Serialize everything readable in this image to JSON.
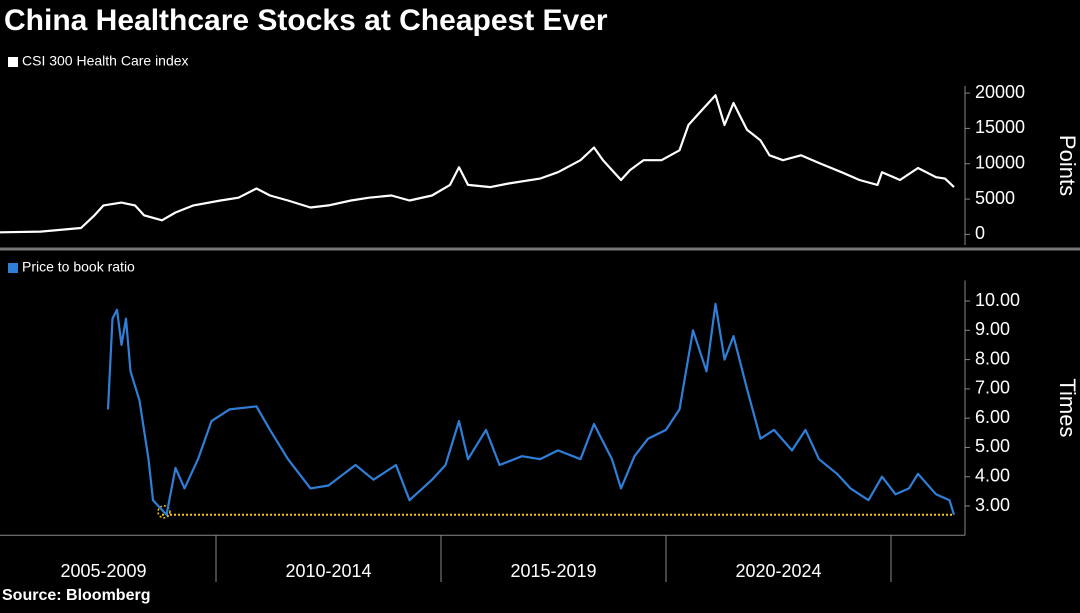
{
  "title": "China Healthcare Stocks at Cheapest Ever",
  "source": "Source: Bloomberg",
  "chart_data": [
    {
      "type": "line",
      "ylabel": "Points",
      "xlim": [
        2005.2,
        2026.6
      ],
      "ylim": [
        -1500,
        21000
      ],
      "yticks": [
        0,
        5000,
        10000,
        15000,
        20000
      ],
      "x": [
        2005.2,
        2006.1,
        2007.0,
        2007.3,
        2007.5,
        2007.9,
        2008.2,
        2008.4,
        2008.8,
        2009.1,
        2009.5,
        2010.1,
        2010.5,
        2010.9,
        2011.2,
        2011.6,
        2012.1,
        2012.5,
        2013.0,
        2013.4,
        2013.9,
        2014.3,
        2014.8,
        2015.2,
        2015.4,
        2015.6,
        2016.1,
        2016.5,
        2017.2,
        2017.6,
        2018.1,
        2018.4,
        2018.6,
        2019.0,
        2019.2,
        2019.5,
        2019.9,
        2020.3,
        2020.5,
        2020.8,
        2021.1,
        2021.3,
        2021.5,
        2021.8,
        2022.1,
        2022.3,
        2022.6,
        2023.0,
        2023.4,
        2023.9,
        2024.3,
        2024.7,
        2024.8,
        2025.2,
        2025.6,
        2026.0,
        2026.2,
        2026.4
      ],
      "series": [
        {
          "name": "CSI 300 Health Care index",
          "color": "#ffffff",
          "values": [
            300,
            400,
            900,
            2700,
            4100,
            4500,
            4100,
            2700,
            2000,
            3100,
            4100,
            4800,
            5200,
            6500,
            5500,
            4800,
            3800,
            4100,
            4800,
            5200,
            5500,
            4800,
            5500,
            7000,
            9500,
            7000,
            6700,
            7200,
            7900,
            8800,
            10500,
            12300,
            10500,
            7700,
            9100,
            10500,
            10500,
            11900,
            15500,
            17600,
            19700,
            15500,
            18600,
            14800,
            13300,
            11200,
            10500,
            11200,
            10100,
            8800,
            7700,
            7000,
            8800,
            7700,
            9400,
            8100,
            7900,
            6700
          ]
        }
      ]
    },
    {
      "type": "line",
      "ylabel": "Times",
      "xlim": [
        2005.2,
        2026.6
      ],
      "ylim": [
        2,
        10.7
      ],
      "yticks": [
        {
          "value": 3,
          "label": "3.00"
        },
        {
          "value": 4,
          "label": "4.00"
        },
        {
          "value": 5,
          "label": "5.00"
        },
        {
          "value": 6,
          "label": "6.00"
        },
        {
          "value": 7,
          "label": "7.00"
        },
        {
          "value": 8,
          "label": "8.00"
        },
        {
          "value": 9,
          "label": "9.00"
        },
        {
          "value": 10,
          "label": "10.00"
        }
      ],
      "xticks": [
        {
          "value": 2007.5,
          "label": "2005-2009"
        },
        {
          "value": 2012.5,
          "label": "2010-2014"
        },
        {
          "value": 2017.5,
          "label": "2015-2019"
        },
        {
          "value": 2022.5,
          "label": "2020-2024"
        }
      ],
      "x_separators": [
        2010,
        2015,
        2020,
        2025
      ],
      "reference_line": {
        "y": 2.7,
        "x": [
          2008.8,
          2026.4
        ],
        "color": "#f5c518"
      },
      "x": [
        2007.6,
        2007.7,
        2007.8,
        2007.9,
        2008.0,
        2008.1,
        2008.3,
        2008.5,
        2008.6,
        2008.9,
        2009.1,
        2009.3,
        2009.6,
        2009.9,
        2010.3,
        2010.9,
        2011.2,
        2011.6,
        2012.1,
        2012.5,
        2013.1,
        2013.5,
        2014.0,
        2014.3,
        2014.8,
        2015.1,
        2015.4,
        2015.6,
        2016.0,
        2016.3,
        2016.8,
        2017.2,
        2017.6,
        2018.1,
        2018.4,
        2018.8,
        2019.0,
        2019.3,
        2019.6,
        2020.0,
        2020.3,
        2020.6,
        2020.9,
        2021.1,
        2021.3,
        2021.5,
        2021.8,
        2022.1,
        2022.4,
        2022.8,
        2023.1,
        2023.4,
        2023.8,
        2024.1,
        2024.5,
        2024.8,
        2025.1,
        2025.4,
        2025.6,
        2026.0,
        2026.3,
        2026.4
      ],
      "series": [
        {
          "name": "Price to book ratio",
          "color": "#2f7ed8",
          "values": [
            6.3,
            9.4,
            9.7,
            8.5,
            9.4,
            7.6,
            6.6,
            4.6,
            3.2,
            2.7,
            4.3,
            3.6,
            4.6,
            5.9,
            6.3,
            6.4,
            5.6,
            4.6,
            3.6,
            3.7,
            4.4,
            3.9,
            4.4,
            3.2,
            3.9,
            4.4,
            5.9,
            4.6,
            5.6,
            4.4,
            4.7,
            4.6,
            4.9,
            4.6,
            5.8,
            4.6,
            3.6,
            4.7,
            5.3,
            5.6,
            6.3,
            9.0,
            7.6,
            9.9,
            8.0,
            8.8,
            7.0,
            5.3,
            5.6,
            4.9,
            5.6,
            4.6,
            4.1,
            3.6,
            3.2,
            4.0,
            3.4,
            3.6,
            4.1,
            3.4,
            3.2,
            2.7
          ]
        }
      ]
    }
  ]
}
